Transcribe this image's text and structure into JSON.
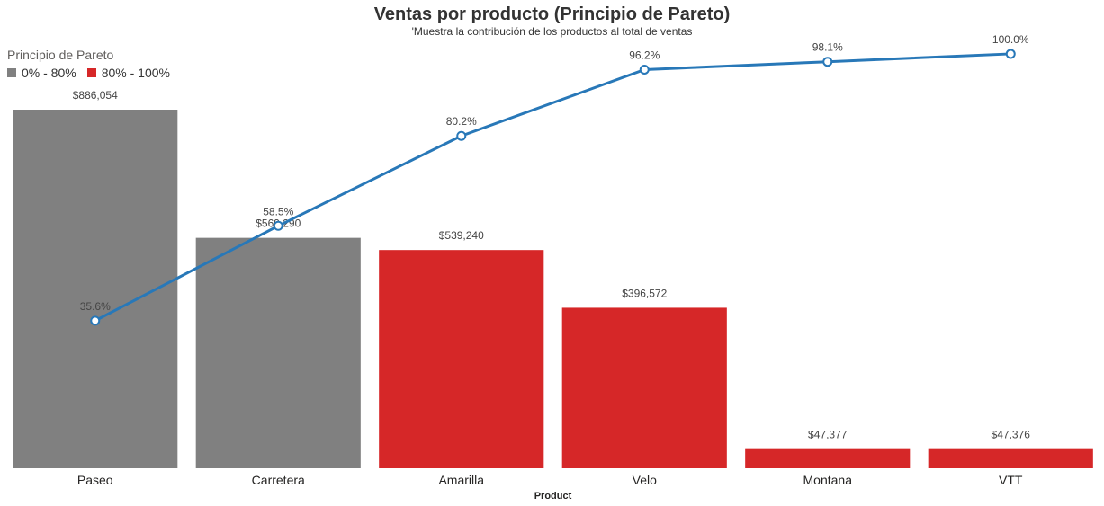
{
  "chart_data": {
    "type": "bar",
    "title": "Ventas por producto (Principio de Pareto)",
    "subtitle": "'Muestra la contribución de los productos al total de ventas",
    "xlabel": "Product",
    "ylabel": "",
    "legend": {
      "title": "Principio de Pareto",
      "placement": "top-left",
      "items": [
        {
          "label": "0% - 80%",
          "color": "#808080"
        },
        {
          "label": "80% - 100%",
          "color": "#d62728"
        }
      ]
    },
    "categories": [
      "Paseo",
      "Carretera",
      "Amarilla",
      "Velo",
      "Montana",
      "VTT"
    ],
    "series": [
      {
        "type": "bar",
        "values": [
          886054,
          569290,
          539240,
          396572,
          47377,
          47376
        ],
        "labels": [
          "$886,054",
          "$569,290",
          "$539,240",
          "$396,572",
          "$47,377",
          "$47,376"
        ],
        "colors": [
          "#808080",
          "#808080",
          "#d62728",
          "#d62728",
          "#d62728",
          "#d62728"
        ]
      },
      {
        "type": "line",
        "values": [
          35.6,
          58.5,
          80.2,
          96.2,
          98.1,
          100.0
        ],
        "labels": [
          "35.6%",
          "58.5%",
          "80.2%",
          "96.2%",
          "98.1%",
          "100.0%"
        ],
        "color": "#2878b8"
      }
    ],
    "ylim": [
      0,
      886054
    ],
    "y2lim": [
      0,
      113
    ],
    "grid": false
  }
}
